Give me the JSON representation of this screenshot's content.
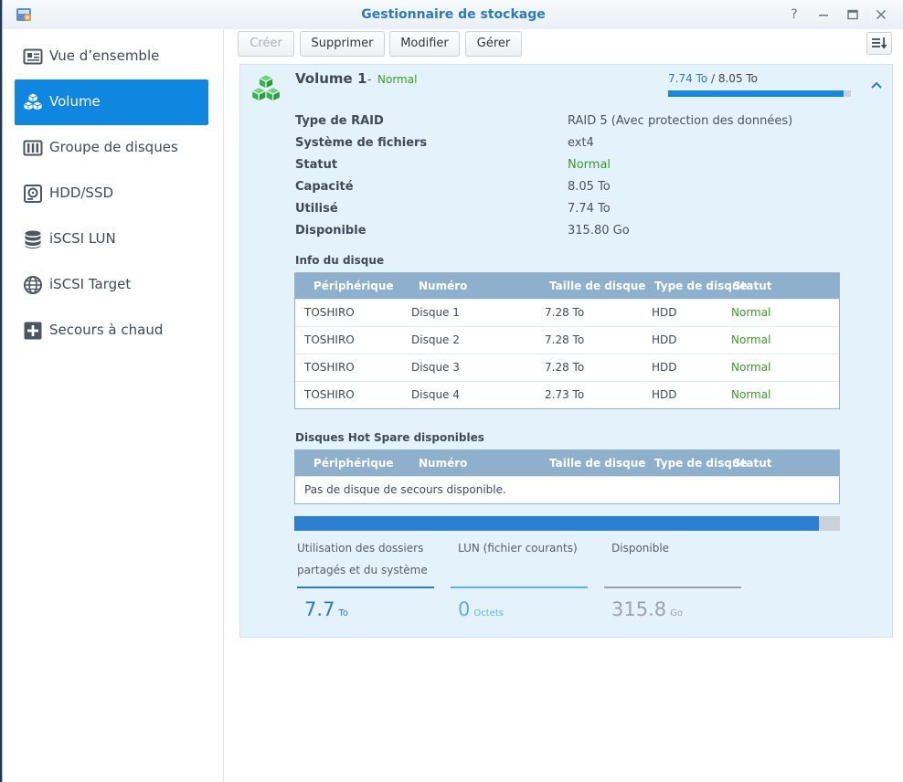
{
  "window": {
    "title": "Gestionnaire de stockage",
    "controls": {
      "help": "?",
      "minimize": "—",
      "maximize": "□",
      "close": "✕"
    }
  },
  "sidebar": {
    "items": [
      {
        "label": "Vue d’ensemble",
        "icon": "overview-card-icon"
      },
      {
        "label": "Volume",
        "icon": "volume-cubes-icon",
        "active": true
      },
      {
        "label": "Groupe de disques",
        "icon": "disk-group-icon"
      },
      {
        "label": "HDD/SSD",
        "icon": "hdd-icon"
      },
      {
        "label": "iSCSI LUN",
        "icon": "database-icon"
      },
      {
        "label": "iSCSI Target",
        "icon": "globe-icon"
      },
      {
        "label": "Secours à chaud",
        "icon": "hot-spare-plus-icon"
      }
    ]
  },
  "toolbar": {
    "create": "Créer",
    "delete": "Supprimer",
    "modify": "Modifier",
    "manage": "Gérer"
  },
  "volume": {
    "name": "Volume 1",
    "separator": "-",
    "status": "Normal",
    "used_label": "7.74 To",
    "total_label": "8.05 To",
    "usage_fraction": 0.96,
    "properties": [
      {
        "label": "Type de RAID",
        "value": "RAID 5 (Avec protection des données)"
      },
      {
        "label": "Système de fichiers",
        "value": "ext4"
      },
      {
        "label": "Statut",
        "value": "Normal"
      },
      {
        "label": "Capacité",
        "value": "8.05 To"
      },
      {
        "label": "Utilisé",
        "value": "7.74 To"
      },
      {
        "label": "Disponible",
        "value": "315.80 Go"
      }
    ]
  },
  "disk_info": {
    "title": "Info du disque",
    "columns": [
      "Périphérique",
      "Numéro",
      "Taille de disque",
      "Type de disque",
      "Statut"
    ],
    "rows": [
      [
        "TOSHIRO",
        "Disque 1",
        "7.28 To",
        "HDD",
        "Normal"
      ],
      [
        "TOSHIRO",
        "Disque 2",
        "7.28 To",
        "HDD",
        "Normal"
      ],
      [
        "TOSHIRO",
        "Disque 3",
        "7.28 To",
        "HDD",
        "Normal"
      ],
      [
        "TOSHIRO",
        "Disque 4",
        "2.73 To",
        "HDD",
        "Normal"
      ]
    ]
  },
  "hot_spare": {
    "title": "Disques Hot Spare disponibles",
    "columns": [
      "Périphérique",
      "Numéro",
      "Taille de disque",
      "Type de disque",
      "Statut"
    ],
    "empty_text": "Pas de disque de secours disponible."
  },
  "usage_summary": {
    "used_fraction": 0.961,
    "stats": [
      {
        "label_line1": "Utilisation des dossiers",
        "label_line2": "partagés et du système",
        "value": "7.7",
        "unit": "To",
        "color": "#2b7bc3"
      },
      {
        "label_line1": "",
        "label_line2": "LUN (fichier courants)",
        "value": "0",
        "unit": "Octets",
        "color": "#5fb0e8"
      },
      {
        "label_line1": "",
        "label_line2": "Disponible",
        "value": "315.8",
        "unit": "Go",
        "color": "#9aa3ab"
      }
    ]
  },
  "colors": {
    "accent": "#0f86e0",
    "status_green": "#3a9a2a",
    "table_header": "#8eb0cc",
    "panel_bg": "#e4f2fb"
  }
}
